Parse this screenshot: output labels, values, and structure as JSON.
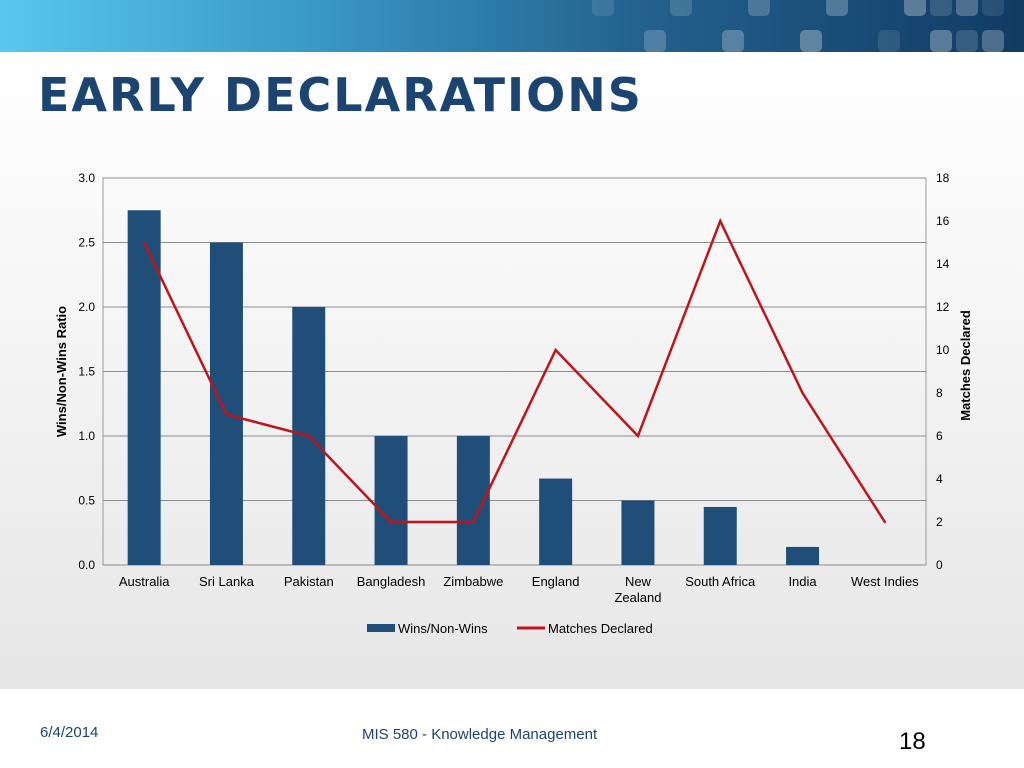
{
  "slide": {
    "title": "Early Declarations",
    "footer_date": "6/4/2014",
    "footer_course": "MIS 580 - Knowledge Management",
    "slide_number": "18"
  },
  "colors": {
    "bar": "#1f4e79",
    "line": "#c0141c",
    "title": "#1b4470"
  },
  "chart_data": {
    "type": "bar",
    "categories": [
      "Australia",
      "Sri Lanka",
      "Pakistan",
      "Bangladesh",
      "Zimbabwe",
      "England",
      "New Zealand",
      "South Africa",
      "India",
      "West Indies"
    ],
    "series": [
      {
        "name": "Wins/Non-Wins",
        "type": "bar",
        "axis": "left",
        "values": [
          2.75,
          2.5,
          2.0,
          1.0,
          1.0,
          0.67,
          0.5,
          0.45,
          0.14,
          0
        ]
      },
      {
        "name": "Matches Declared",
        "type": "line",
        "axis": "right",
        "values": [
          15,
          7,
          6,
          2,
          2,
          10,
          6,
          16,
          8,
          2
        ]
      }
    ],
    "ylabel": "Wins/Non-Wins Ratio",
    "y2label": "Matches Declared",
    "ylim": [
      0,
      3.0
    ],
    "y2lim": [
      0,
      18
    ],
    "yticks": [
      "0.0",
      "0.5",
      "1.0",
      "1.5",
      "2.0",
      "2.5",
      "3.0"
    ],
    "y2ticks": [
      "0",
      "2",
      "4",
      "6",
      "8",
      "10",
      "12",
      "14",
      "16",
      "18"
    ],
    "grid": true,
    "legend": "bottom"
  }
}
